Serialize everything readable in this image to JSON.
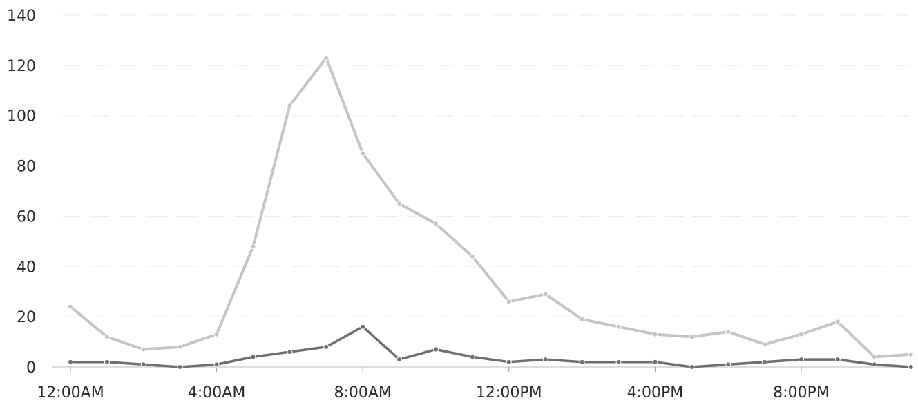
{
  "chart_data": {
    "type": "line",
    "title": "",
    "xlabel": "",
    "ylabel": "",
    "x": [
      "12:00AM",
      "1:00AM",
      "2:00AM",
      "3:00AM",
      "4:00AM",
      "5:00AM",
      "6:00AM",
      "7:00AM",
      "8:00AM",
      "9:00AM",
      "10:00AM",
      "11:00AM",
      "12:00PM",
      "1:00PM",
      "2:00PM",
      "3:00PM",
      "4:00PM",
      "5:00PM",
      "6:00PM",
      "7:00PM",
      "8:00PM",
      "9:00PM",
      "10:00PM",
      "11:00PM"
    ],
    "x_tick_labels": [
      "12:00AM",
      "4:00AM",
      "8:00AM",
      "12:00PM",
      "4:00PM",
      "8:00PM"
    ],
    "x_tick_every": 4,
    "y_ticks": [
      0,
      20,
      40,
      60,
      80,
      100,
      120,
      140
    ],
    "ylim": [
      0,
      140
    ],
    "grid": true,
    "series": [
      {
        "color": "#c4c4c4",
        "values": [
          24,
          12,
          7,
          8,
          13,
          48,
          104,
          123,
          85,
          65,
          57,
          44,
          26,
          29,
          19,
          16,
          13,
          12,
          14,
          9,
          13,
          18,
          4,
          5
        ]
      },
      {
        "color": "#6e6e6e",
        "values": [
          2,
          2,
          1,
          0,
          1,
          4,
          6,
          8,
          16,
          3,
          7,
          4,
          2,
          3,
          2,
          2,
          2,
          0,
          1,
          2,
          3,
          3,
          1,
          0
        ]
      }
    ]
  }
}
